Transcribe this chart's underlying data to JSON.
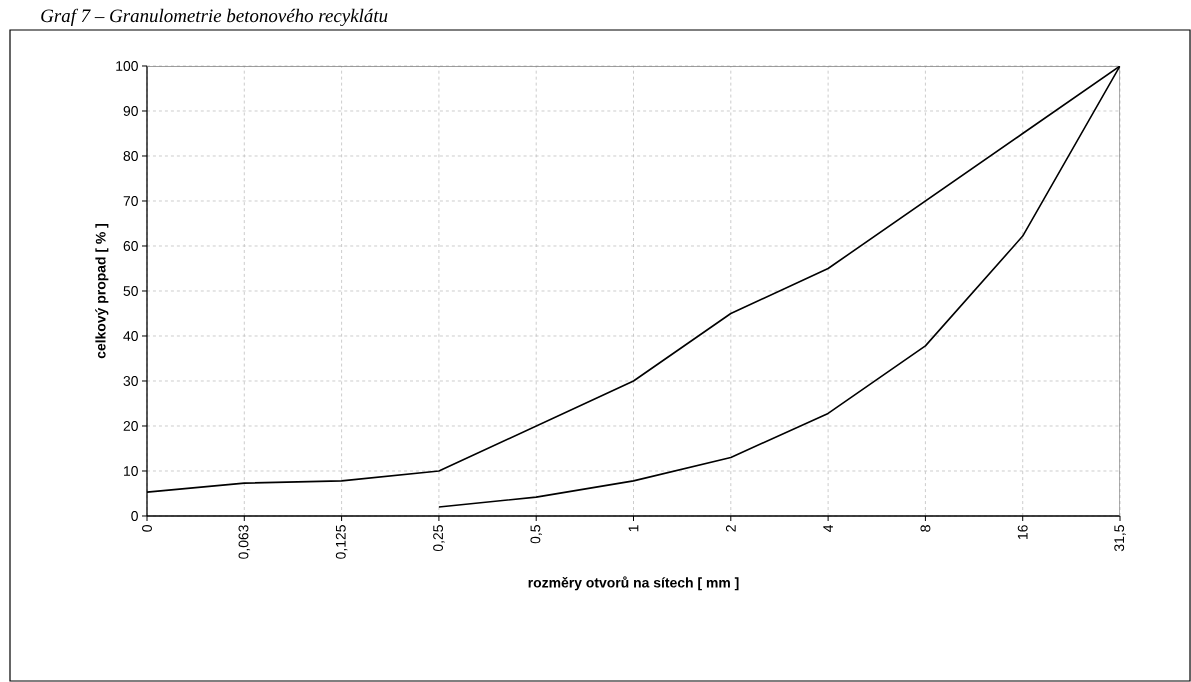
{
  "chart_data": {
    "type": "line",
    "title": "Graf 7 – Granulometrie betonového recyklátu",
    "xlabel": "rozměry otvorů na sítech [ mm ]",
    "ylabel": "celkový propad [ % ]",
    "categories": [
      "0",
      "0,063",
      "0,125",
      "0,25",
      "0,5",
      "1",
      "2",
      "4",
      "8",
      "16",
      "31,5"
    ],
    "series": [
      {
        "color": "#000000",
        "values": [
          5.3,
          7.3,
          7.8,
          10,
          20,
          30,
          45,
          55,
          70,
          85,
          100
        ]
      },
      {
        "color": "#000000",
        "values": [
          null,
          null,
          null,
          2,
          4.2,
          7.8,
          13,
          22.8,
          37.8,
          62.2,
          100
        ]
      }
    ],
    "ylim": [
      0,
      100
    ],
    "yticks": [
      0,
      10,
      20,
      30,
      40,
      50,
      60,
      70,
      80,
      90,
      100
    ],
    "grid": true,
    "marker": "none",
    "line_style": "solid"
  }
}
